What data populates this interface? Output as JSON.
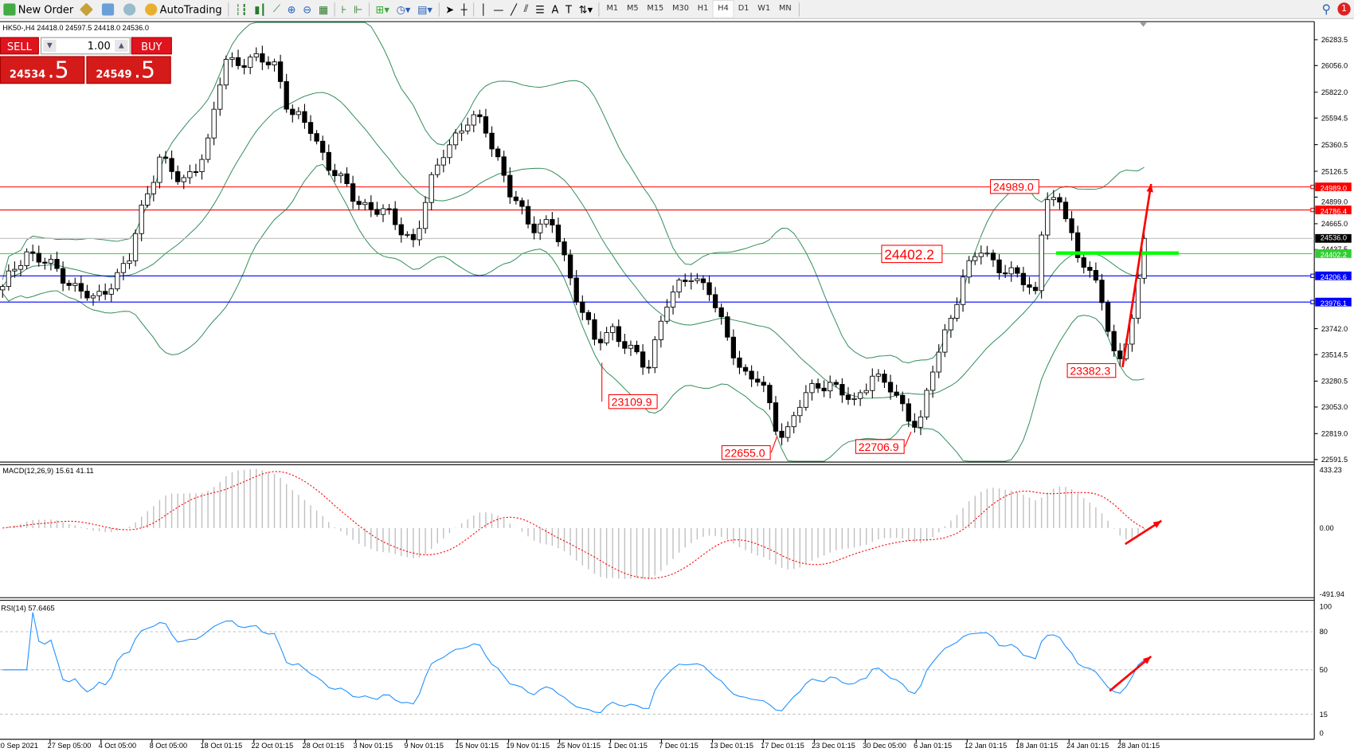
{
  "toolbar": {
    "new_order": "New Order",
    "autotrading": "AutoTrading",
    "timeframes": [
      "M1",
      "M5",
      "M15",
      "M30",
      "H1",
      "H4",
      "D1",
      "W1",
      "MN"
    ],
    "active_timeframe": "H4",
    "notification_count": "1"
  },
  "chart": {
    "header": "HK50-,H4  24418.0 24597.5 24418.0 24536.0",
    "one_click": {
      "sell": "SELL",
      "buy": "BUY",
      "lot": "1.00",
      "bid_main": "24534",
      "bid_big": ".5",
      "ask_main": "24549",
      "ask_big": ".5"
    },
    "price_axis": [
      "26283.5",
      "26056.0",
      "25822.0",
      "25594.5",
      "25360.5",
      "25126.5",
      "24899.0",
      "24665.0",
      "24437.5",
      "23742.0",
      "23514.5",
      "23280.5",
      "23053.0",
      "22819.0",
      "22591.5"
    ],
    "price_range": [
      22591.5,
      26283.5
    ],
    "current_price": {
      "value": 24536.0,
      "label": "24536.0",
      "color": "#000000"
    },
    "hlines": [
      {
        "label": "24989.0",
        "value": 24989.0,
        "color": "#ff0000"
      },
      {
        "label": "24786.4",
        "value": 24786.4,
        "color": "#ff0000"
      },
      {
        "label": "24402.2",
        "value": 24402.2,
        "color": "#32cd32"
      },
      {
        "label": "24206.6",
        "value": 24206.6,
        "color": "#0000ff"
      },
      {
        "label": "23976.1",
        "value": 23976.1,
        "color": "#0000ff"
      }
    ],
    "annotations": [
      "24989.0",
      "24402.2",
      "23109.9",
      "22655.0",
      "22706.9",
      "23382.3"
    ],
    "time_axis": [
      "20 Sep 2021",
      "27 Sep 05:00",
      "4 Oct 05:00",
      "8 Oct 05:00",
      "18 Oct 01:15",
      "22 Oct 01:15",
      "28 Oct 01:15",
      "3 Nov 01:15",
      "9 Nov 01:15",
      "15 Nov 01:15",
      "19 Nov 01:15",
      "25 Nov 01:15",
      "1 Dec 01:15",
      "7 Dec 01:15",
      "13 Dec 01:15",
      "17 Dec 01:15",
      "23 Dec 01:15",
      "30 Dec 05:00",
      "6 Jan 01:15",
      "12 Jan 01:15",
      "18 Jan 01:15",
      "24 Jan 01:15",
      "28 Jan 01:15"
    ],
    "close_path": [
      24050,
      24430,
      24280,
      23975,
      24355,
      24810,
      25265,
      25000,
      25340,
      26100,
      26100,
      26063,
      25645,
      25493,
      25189,
      24885,
      24733,
      24505,
      25037,
      25340,
      25570,
      25570,
      25265,
      24923,
      24657,
      24657,
      24201,
      23594,
      23746,
      23366,
      23974,
      24201,
      24125,
      23670,
      23366,
      23290,
      22834,
      22834,
      23138,
      23290,
      23062,
      23366,
      23214,
      22986,
      22910,
      23366,
      23822,
      24201,
      24430,
      24280,
      24125,
      24050,
      24961,
      24810,
      24657,
      24280,
      24315,
      23746,
      23442,
      23822,
      24536
    ],
    "close_path_dates": [
      "20 Sep",
      "24 Sep",
      "28 Sep",
      "4 Oct",
      "7 Oct",
      "8 Oct",
      "12 Oct",
      "14 Oct",
      "18 Oct",
      "20 Oct",
      "22 Oct",
      "25 Oct",
      "27 Oct",
      "29 Oct",
      "1 Nov",
      "4 Nov",
      "8 Nov",
      "10 Nov",
      "11 Nov",
      "12 Nov",
      "15 Nov",
      "16 Nov",
      "17 Nov",
      "18 Nov",
      "22 Nov",
      "23 Nov",
      "25 Nov",
      "29 Nov",
      "30 Nov",
      "2 Dec",
      "3 Dec",
      "6 Dec",
      "8 Dec",
      "9 Dec",
      "10 Dec",
      "13 Dec",
      "15 Dec",
      "16 Dec",
      "17 Dec",
      "20 Dec",
      "22 Dec",
      "23 Dec",
      "28 Dec",
      "30 Dec",
      "31 Dec",
      "4 Jan",
      "6 Jan",
      "10 Jan",
      "11 Jan",
      "13 Jan",
      "17 Jan",
      "18 Jan",
      "19 Jan",
      "20 Jan",
      "21 Jan",
      "24 Jan",
      "25 Jan",
      "26 Jan",
      "27 Jan",
      "28 Jan",
      "28 Jan"
    ],
    "bollinger_color": "#2e8b57",
    "bull_candle": "#ffffff",
    "bear_candle": "#000000"
  },
  "macd": {
    "label": "MACD(12,26,9) 15.61 41.11",
    "axis": [
      "433.23",
      "0.00",
      "-491.94"
    ],
    "range": [
      -491.94,
      433.23
    ],
    "histogram_color": "#c0c0c0",
    "signal_color": "#ff0000"
  },
  "rsi": {
    "label": "RSI(14) 57.6465",
    "axis": [
      "100",
      "80",
      "50",
      "15",
      "0"
    ],
    "levels": [
      80,
      50,
      15
    ],
    "line_color": "#1e90ff"
  },
  "drawings": {
    "arrow_color": "#ff0000",
    "support_color": "#00ff00"
  }
}
